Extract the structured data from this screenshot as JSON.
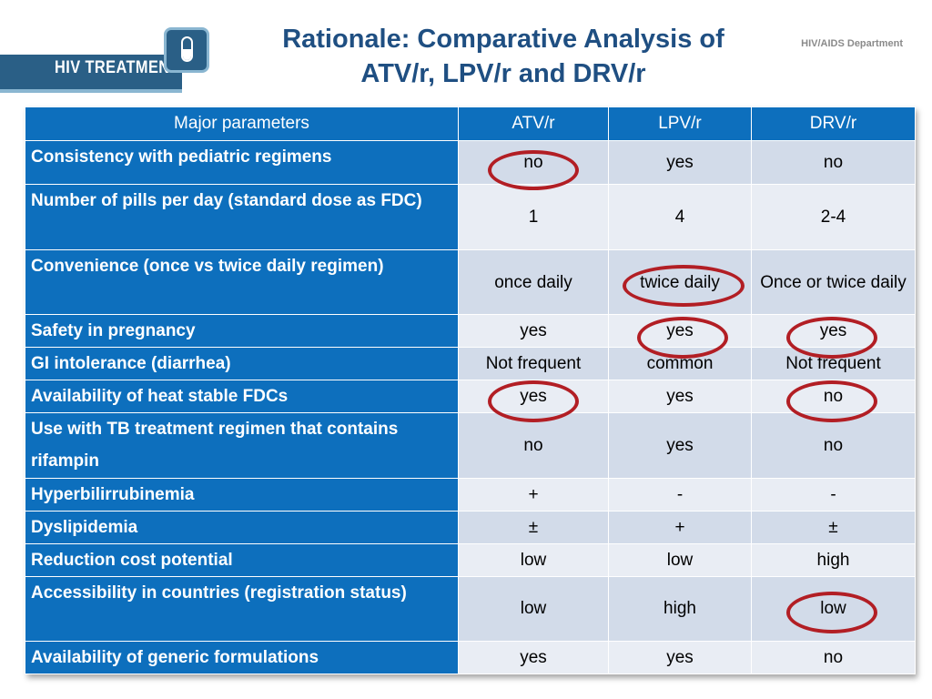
{
  "logo": {
    "text": "HIV TREATMENT"
  },
  "header": {
    "title_line1": "Rationale: Comparative Analysis of",
    "title_line2": "ATV/r, LPV/r and DRV/r",
    "department": "HIV/AIDS Department"
  },
  "table": {
    "columns": [
      "Major parameters",
      "ATV/r",
      "LPV/r",
      "DRV/r"
    ],
    "rows": [
      {
        "param": "Consistency with pediatric regimens",
        "values": [
          "no",
          "yes",
          "no"
        ]
      },
      {
        "param": "Number of pills per day (standard dose as FDC)",
        "values": [
          "1",
          "4",
          "2-4"
        ]
      },
      {
        "param": "Convenience (once vs twice daily regimen)",
        "values": [
          "once daily",
          "twice daily",
          "Once or twice daily"
        ]
      },
      {
        "param": "Safety in pregnancy",
        "values": [
          "yes",
          "yes",
          "yes"
        ]
      },
      {
        "param": "GI intolerance (diarrhea)",
        "values": [
          "Not frequent",
          "common",
          "Not frequent"
        ]
      },
      {
        "param": "Availability of heat stable FDCs",
        "values": [
          "yes",
          "yes",
          "no"
        ]
      },
      {
        "param": "Use with TB treatment regimen  that contains rifampin",
        "values": [
          "no",
          "yes",
          "no"
        ]
      },
      {
        "param": "Hyperbilirrubinemia",
        "values": [
          "+",
          "-",
          "-"
        ]
      },
      {
        "param": "Dyslipidemia",
        "values": [
          "±",
          "+",
          "±"
        ]
      },
      {
        "param": "Reduction cost potential",
        "values": [
          "low",
          "low",
          "high"
        ]
      },
      {
        "param": "Accessibility in countries (registration status)",
        "values": [
          "low",
          "high",
          "low"
        ]
      },
      {
        "param": "Availability of generic  formulations",
        "values": [
          "yes",
          "yes",
          "no"
        ]
      }
    ]
  },
  "colors": {
    "header_blue": "#0d6fbd",
    "title_blue": "#1f4f82",
    "circle_red": "#b21e24"
  }
}
